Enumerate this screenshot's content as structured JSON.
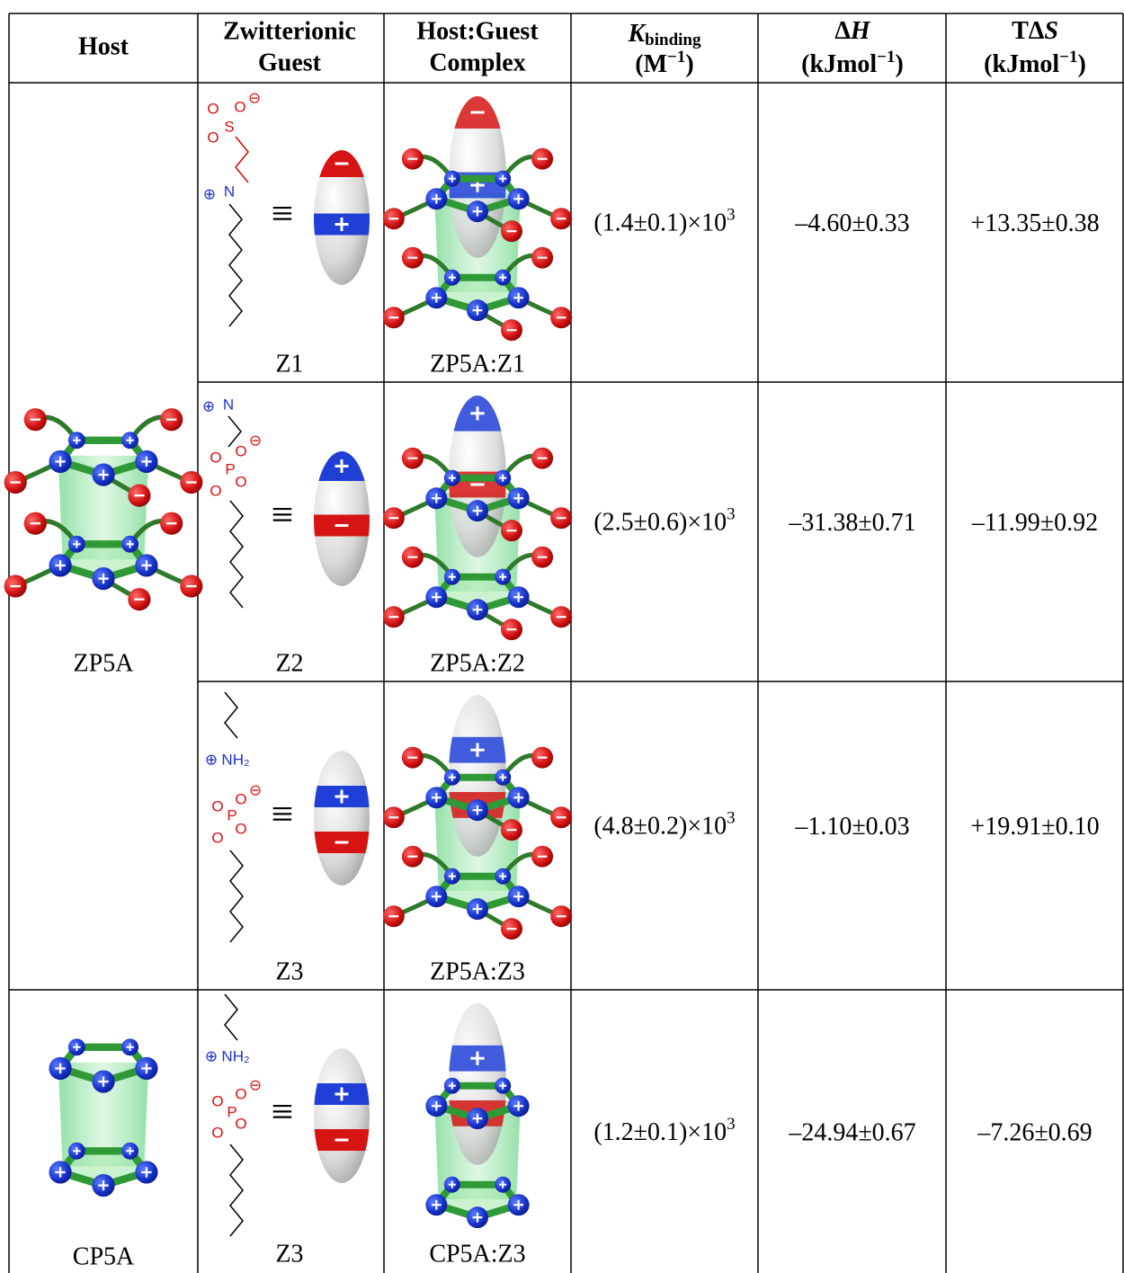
{
  "header": {
    "host": "Host",
    "guest": [
      "Zwitterionic",
      "Guest"
    ],
    "complex": [
      "Host:Guest",
      "Complex"
    ],
    "k": {
      "symbol": "K",
      "sub": "binding",
      "unit": "(M",
      "sup": "−1",
      "close": ")"
    },
    "dH": {
      "delta": "Δ",
      "symbol": "H",
      "unit": "(kJmol",
      "sup": "−1",
      "close": ")"
    },
    "TdS": {
      "delta": "TΔ",
      "symbol": "S",
      "unit": "(kJmol",
      "sup": "−1",
      "close": ")"
    }
  },
  "hosts": [
    "ZP5A",
    "CP5A"
  ],
  "rows": [
    {
      "guest": "Z1",
      "complex": "ZP5A:Z1",
      "k": "(1.4±0.1)×10",
      "k_exp": "3",
      "dH": "–4.60±0.33",
      "TdS": "+13.35±0.38",
      "equiv": "≡",
      "atoms": [
        "O",
        "O",
        "⊖",
        "O",
        "S",
        "⊕",
        "N"
      ]
    },
    {
      "guest": "Z2",
      "complex": "ZP5A:Z2",
      "k": "(2.5±0.6)×10",
      "k_exp": "3",
      "dH": "–31.38±0.71",
      "TdS": "–11.99±0.92",
      "equiv": "≡",
      "atoms": [
        "⊕",
        "N",
        "O",
        "O",
        "⊖",
        "P",
        "O",
        "O"
      ]
    },
    {
      "guest": "Z3",
      "complex": "ZP5A:Z3",
      "k": "(4.8±0.2)×10",
      "k_exp": "3",
      "dH": "–1.10±0.03",
      "TdS": "+19.91±0.10",
      "equiv": "≡",
      "atoms": [
        "⊕",
        "NH₂",
        "O",
        "O",
        "⊖",
        "P",
        "O",
        "O"
      ]
    },
    {
      "guest": "Z3",
      "complex": "CP5A:Z3",
      "k": "(1.2±0.1)×10",
      "k_exp": "3",
      "dH": "–24.94±0.67",
      "TdS": "–7.26±0.69",
      "equiv": "≡",
      "atoms": [
        "⊕",
        "NH₂",
        "O",
        "O",
        "⊖",
        "P",
        "O",
        "O"
      ]
    }
  ]
}
